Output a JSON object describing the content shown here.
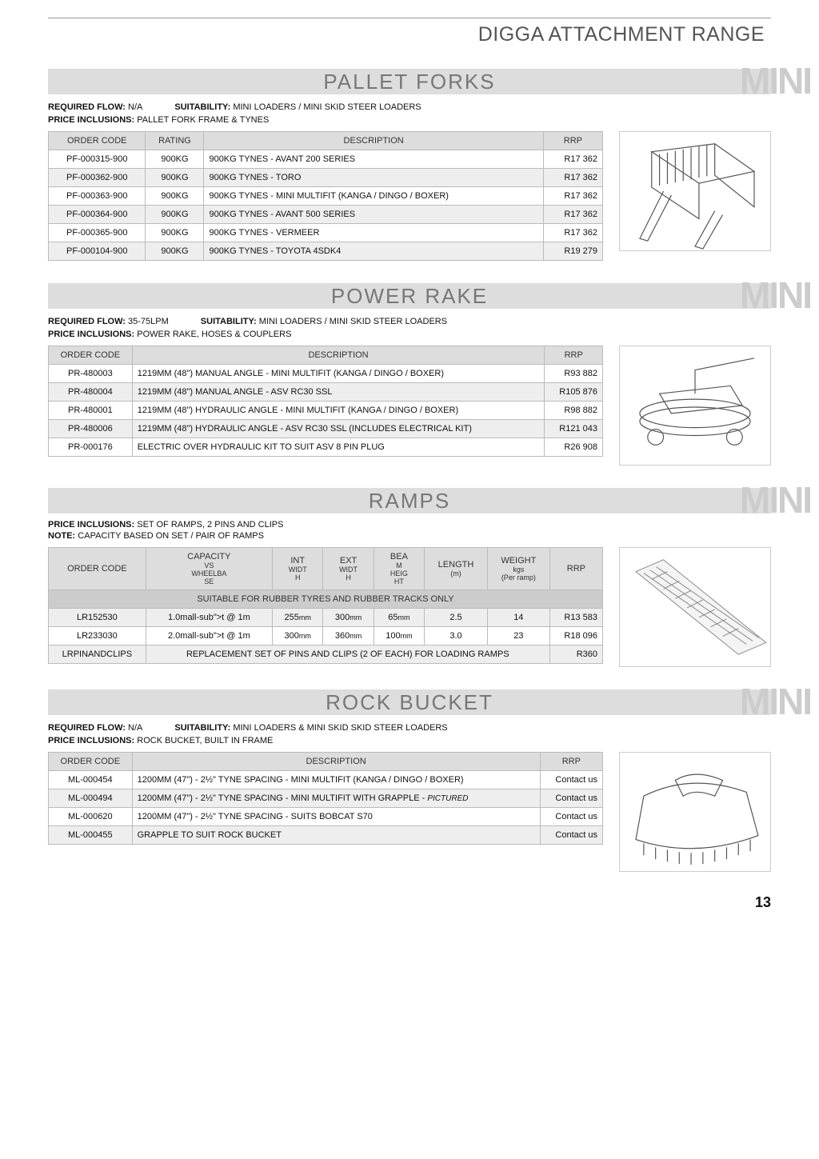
{
  "page": {
    "header": "DIGGA ATTACHMENT RANGE",
    "number": "13",
    "mini_tag": "MINI"
  },
  "palletForks": {
    "title": "PALLET FORKS",
    "flow_label": "REQUIRED FLOW:",
    "flow": "N/A",
    "suit_label": "SUITABILITY:",
    "suit": "MINI LOADERS / MINI SKID STEER LOADERS",
    "inc_label": "PRICE INCLUSIONS:",
    "inc": "PALLET FORK FRAME & TYNES",
    "cols": [
      "ORDER CODE",
      "RATING",
      "DESCRIPTION",
      "RRP"
    ],
    "rows": [
      [
        "PF-000315-900",
        "900KG",
        "900KG TYNES - AVANT 200 SERIES",
        "R17 362"
      ],
      [
        "PF-000362-900",
        "900KG",
        "900KG TYNES - TORO",
        "R17 362"
      ],
      [
        "PF-000363-900",
        "900KG",
        "900KG TYNES - MINI MULTIFIT (KANGA / DINGO / BOXER)",
        "R17 362"
      ],
      [
        "PF-000364-900",
        "900KG",
        "900KG TYNES - AVANT 500 SERIES",
        "R17 362"
      ],
      [
        "PF-000365-900",
        "900KG",
        "900KG TYNES - VERMEER",
        "R17 362"
      ],
      [
        "PF-000104-900",
        "900KG",
        "900KG TYNES - TOYOTA 4SDK4",
        "R19 279"
      ]
    ]
  },
  "powerRake": {
    "title": "POWER RAKE",
    "flow_label": "REQUIRED FLOW:",
    "flow": "35-75LPM",
    "suit_label": "SUITABILITY:",
    "suit": "MINI LOADERS / MINI SKID STEER LOADERS",
    "inc_label": "PRICE INCLUSIONS:",
    "inc": "POWER RAKE, HOSES & COUPLERS",
    "cols": [
      "ORDER CODE",
      "DESCRIPTION",
      "RRP"
    ],
    "rows": [
      [
        "PR-480003",
        "1219MM (48\") MANUAL ANGLE - MINI MULTIFIT (KANGA / DINGO / BOXER)",
        "R93 882"
      ],
      [
        "PR-480004",
        "1219MM (48\") MANUAL ANGLE - ASV RC30 SSL",
        "R105 876"
      ],
      [
        "PR-480001",
        "1219MM (48\") HYDRAULIC ANGLE - MINI MULTIFIT (KANGA / DINGO / BOXER)",
        "R98 882"
      ],
      [
        "PR-480006",
        "1219MM (48\") HYDRAULIC ANGLE - ASV RC30 SSL (INCLUDES ELECTRICAL KIT)",
        "R121 043"
      ],
      [
        "PR-000176",
        "ELECTRIC OVER HYDRAULIC KIT TO SUIT ASV 8 PIN PLUG",
        "R26 908"
      ]
    ]
  },
  "ramps": {
    "title": "RAMPS",
    "inc_label": "PRICE INCLUSIONS:",
    "inc": "SET OF RAMPS, 2 PINS AND CLIPS",
    "note_label": "NOTE:",
    "note": "CAPACITY BASED ON SET / PAIR OF RAMPS",
    "cols": [
      "ORDER CODE",
      "CAPACITY VS WHEELBASE",
      "INT WIDTH",
      "EXT WIDTH",
      "BEAM HEIGHT",
      "LENGTH (m)",
      "WEIGHT kgs (Per ramp)",
      "RRP"
    ],
    "sub_header": "SUITABLE FOR RUBBER TYRES AND RUBBER TRACKS ONLY",
    "rows": [
      [
        "LR152530",
        "1.0t @ 1m",
        "255mm",
        "300mm",
        "65mm",
        "2.5",
        "14",
        "R13 583"
      ],
      [
        "LR233030",
        "2.0t @ 1m",
        "300mm",
        "360mm",
        "100mm",
        "3.0",
        "23",
        "R18 096"
      ]
    ],
    "last_row": {
      "code": "LRPINANDCLIPS",
      "desc": "REPLACEMENT SET OF PINS AND CLIPS (2 OF EACH) FOR LOADING RAMPS",
      "rrp": "R360"
    }
  },
  "rockBucket": {
    "title": "ROCK BUCKET",
    "flow_label": "REQUIRED FLOW:",
    "flow": "N/A",
    "suit_label": "SUITABILITY:",
    "suit": "MINI LOADERS & MINI SKID SKID STEER LOADERS",
    "inc_label": "PRICE INCLUSIONS:",
    "inc": "ROCK BUCKET, BUILT IN FRAME",
    "cols": [
      "ORDER CODE",
      "DESCRIPTION",
      "RRP"
    ],
    "rows": [
      [
        "ML-000454",
        "1200MM (47\") - 2½\" TYNE SPACING - MINI MULTIFIT (KANGA / DINGO / BOXER)",
        "Contact us"
      ],
      [
        "ML-000494",
        "1200MM (47\") - 2½\" TYNE SPACING - MINI MULTIFIT WITH GRAPPLE - <span class='italic'>PICTURED</span>",
        "Contact us"
      ],
      [
        "ML-000620",
        "1200MM (47\") - 2½\" TYNE SPACING - SUITS BOBCAT S70",
        "Contact us"
      ],
      [
        "ML-000455",
        "GRAPPLE TO SUIT ROCK BUCKET",
        "Contact us"
      ]
    ]
  }
}
